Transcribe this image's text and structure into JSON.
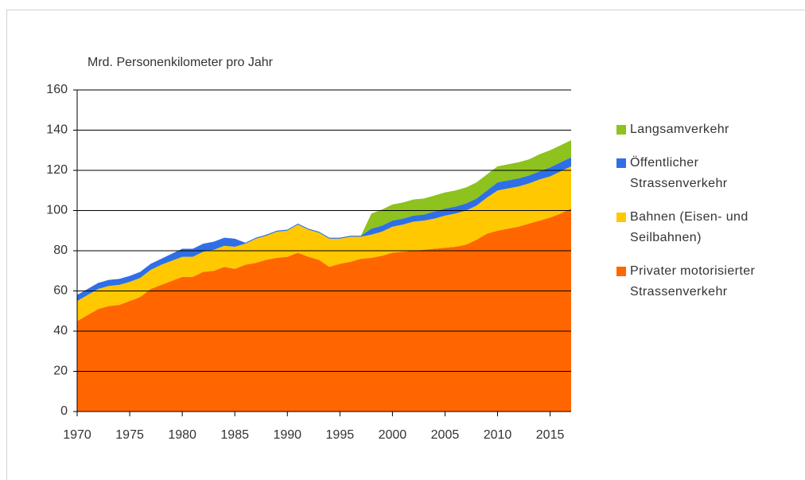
{
  "chart_data": {
    "type": "area",
    "stacked": true,
    "y_label": "Mrd. Personenkilometer pro Jahr",
    "x": [
      1970,
      1971,
      1972,
      1973,
      1974,
      1975,
      1976,
      1977,
      1978,
      1979,
      1980,
      1981,
      1982,
      1983,
      1984,
      1985,
      1986,
      1987,
      1988,
      1989,
      1990,
      1991,
      1992,
      1993,
      1994,
      1995,
      1996,
      1997,
      1998,
      1999,
      2000,
      2001,
      2002,
      2003,
      2004,
      2005,
      2006,
      2007,
      2008,
      2009,
      2010,
      2011,
      2012,
      2013,
      2014,
      2015,
      2016,
      2017
    ],
    "xlim": [
      1970,
      2017
    ],
    "xticks": [
      1970,
      1975,
      1980,
      1985,
      1990,
      1995,
      2000,
      2005,
      2010,
      2015
    ],
    "ylim": [
      0,
      160
    ],
    "yticks": [
      0,
      20,
      40,
      60,
      80,
      100,
      120,
      140,
      160
    ],
    "grid": true,
    "series": [
      {
        "name": "Privater motorisierter Strassenverkehr",
        "color": "#ff6600",
        "values": [
          45,
          48,
          51,
          52.5,
          53,
          55,
          57,
          61,
          63,
          65,
          67,
          67,
          69.5,
          70,
          72,
          71,
          73,
          74,
          75.5,
          76.5,
          77,
          79,
          77,
          75.5,
          72,
          73.5,
          74.5,
          76,
          76.5,
          77.5,
          79,
          79.5,
          80,
          80.5,
          81,
          81.5,
          82,
          83,
          85.5,
          88.5,
          90,
          91,
          92,
          93.5,
          95,
          96.5,
          98.5,
          101
        ]
      },
      {
        "name": "Bahnen (Eisen- und Seilbahnen)",
        "color": "#ffc800",
        "values": [
          10,
          10,
          10,
          10,
          10,
          9.5,
          9.5,
          9.5,
          10,
          10,
          10,
          10,
          10,
          10.5,
          10.5,
          11,
          10.5,
          12,
          12,
          13,
          13,
          14,
          13.5,
          13.5,
          14,
          12.5,
          12.5,
          11,
          11.5,
          12,
          13,
          13.5,
          14.5,
          14.5,
          15,
          16,
          16.5,
          17,
          17,
          18,
          20,
          20,
          20,
          20,
          20.5,
          20.5,
          21,
          21
        ]
      },
      {
        "name": "Öffentlicher Strassenverkehr",
        "color": "#2f6fe6",
        "values": [
          3,
          3,
          3,
          3,
          3,
          3,
          3,
          3,
          3,
          3.5,
          4,
          4,
          4,
          4,
          4,
          4,
          0.5,
          0.5,
          0.5,
          0.5,
          0.5,
          0.5,
          0.5,
          0.5,
          0.5,
          0.5,
          0.5,
          0.5,
          3,
          3,
          3,
          3,
          3,
          3,
          3.5,
          3.5,
          3.5,
          3.5,
          3.5,
          3.5,
          4,
          4,
          4,
          4,
          4,
          4.5,
          4.5,
          4.5
        ]
      },
      {
        "name": "Langsamverkehr",
        "color": "#8dc21f",
        "values": [
          0,
          0,
          0,
          0,
          0,
          0,
          0,
          0,
          0,
          0,
          0,
          0,
          0,
          0,
          0,
          0,
          0,
          0,
          0,
          0,
          0,
          0,
          0,
          0,
          0,
          0,
          0,
          0,
          7.5,
          8,
          8,
          8,
          8,
          8,
          8,
          8,
          8,
          8,
          8,
          8,
          8,
          8,
          8,
          8,
          8.5,
          8.5,
          8.5,
          8.5
        ]
      }
    ]
  }
}
